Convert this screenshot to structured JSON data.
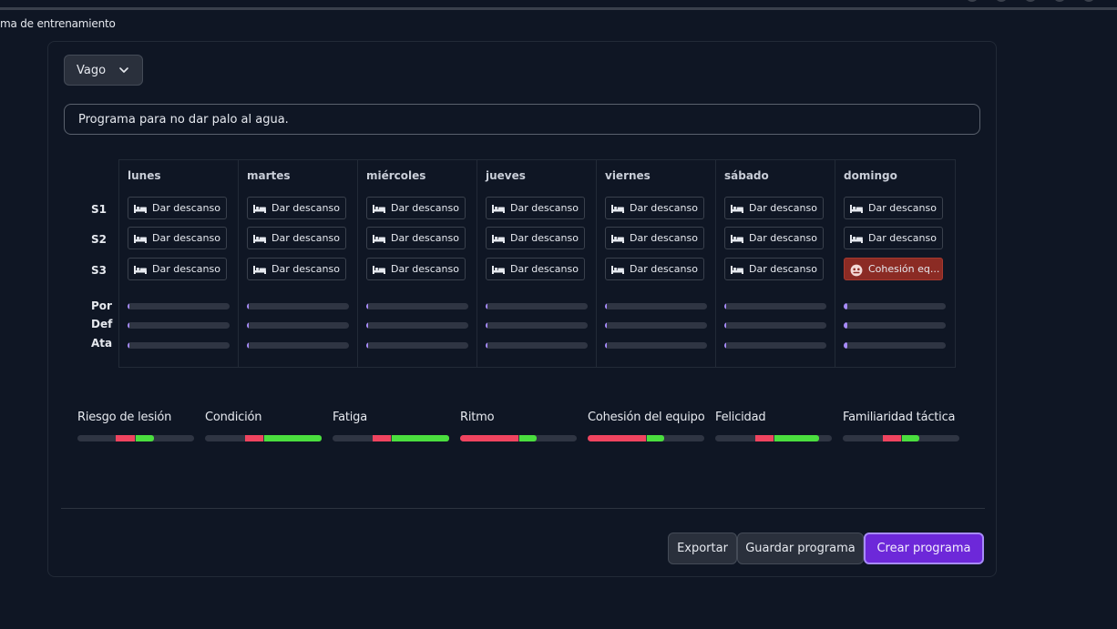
{
  "breadcrumb": "ma de entrenamiento",
  "profile_select": {
    "value": "Vago"
  },
  "description_input": {
    "value": "Programa para no dar palo al agua."
  },
  "row_labels": {
    "sessions": [
      "S1",
      "S2",
      "S3"
    ],
    "lines": [
      "Por",
      "Def",
      "Ata"
    ]
  },
  "days": [
    {
      "name": "lunes",
      "slots": [
        {
          "label": "Dar descanso",
          "icon": "bed-icon"
        },
        {
          "label": "Dar descanso",
          "icon": "bed-icon"
        },
        {
          "label": "Dar descanso",
          "icon": "bed-icon"
        }
      ],
      "bars": [
        0.02,
        0.02,
        0.02
      ]
    },
    {
      "name": "martes",
      "slots": [
        {
          "label": "Dar descanso",
          "icon": "bed-icon"
        },
        {
          "label": "Dar descanso",
          "icon": "bed-icon"
        },
        {
          "label": "Dar descanso",
          "icon": "bed-icon"
        }
      ],
      "bars": [
        0.02,
        0.02,
        0.02
      ]
    },
    {
      "name": "miércoles",
      "slots": [
        {
          "label": "Dar descanso",
          "icon": "bed-icon"
        },
        {
          "label": "Dar descanso",
          "icon": "bed-icon"
        },
        {
          "label": "Dar descanso",
          "icon": "bed-icon"
        }
      ],
      "bars": [
        0.02,
        0.02,
        0.02
      ]
    },
    {
      "name": "jueves",
      "slots": [
        {
          "label": "Dar descanso",
          "icon": "bed-icon"
        },
        {
          "label": "Dar descanso",
          "icon": "bed-icon"
        },
        {
          "label": "Dar descanso",
          "icon": "bed-icon"
        }
      ],
      "bars": [
        0.02,
        0.02,
        0.02
      ]
    },
    {
      "name": "viernes",
      "slots": [
        {
          "label": "Dar descanso",
          "icon": "bed-icon"
        },
        {
          "label": "Dar descanso",
          "icon": "bed-icon"
        },
        {
          "label": "Dar descanso",
          "icon": "bed-icon"
        }
      ],
      "bars": [
        0.02,
        0.02,
        0.02
      ]
    },
    {
      "name": "sábado",
      "slots": [
        {
          "label": "Dar descanso",
          "icon": "bed-icon"
        },
        {
          "label": "Dar descanso",
          "icon": "bed-icon"
        },
        {
          "label": "Dar descanso",
          "icon": "bed-icon"
        }
      ],
      "bars": [
        0.02,
        0.02,
        0.02
      ]
    },
    {
      "name": "domingo",
      "slots": [
        {
          "label": "Dar descanso",
          "icon": "bed-icon"
        },
        {
          "label": "Dar descanso",
          "icon": "bed-icon"
        },
        {
          "label": "Cohesión eq...",
          "icon": "team-icon",
          "highlight": true
        }
      ],
      "bars": [
        0.04,
        0.04,
        0.04
      ]
    }
  ],
  "metrics": [
    {
      "label": "Riesgo de lesión",
      "red": [
        0.33,
        0.49
      ],
      "green": [
        0.5,
        0.66
      ]
    },
    {
      "label": "Condición",
      "red": [
        0.34,
        0.5
      ],
      "green": [
        0.51,
        1.0
      ]
    },
    {
      "label": "Fatiga",
      "red": [
        0.34,
        0.5
      ],
      "green": [
        0.51,
        1.0
      ]
    },
    {
      "label": "Ritmo",
      "red": [
        0.0,
        0.5
      ],
      "green": [
        0.51,
        0.66
      ]
    },
    {
      "label": "Cohesión del equipo",
      "red": [
        0.0,
        0.5
      ],
      "green": [
        0.51,
        0.66
      ]
    },
    {
      "label": "Felicidad",
      "red": [
        0.34,
        0.5
      ],
      "green": [
        0.51,
        0.89
      ]
    },
    {
      "label": "Familiaridad táctica",
      "red": [
        0.34,
        0.5
      ],
      "green": [
        0.51,
        0.66
      ]
    }
  ],
  "actions": {
    "export": "Exportar",
    "save": "Guardar programa",
    "create": "Crear programa"
  },
  "colors": {
    "accent": "#6d28d9",
    "risk_red": "#f0445f",
    "positive_green": "#4ade3e",
    "load_purple": "#a78bfa"
  }
}
